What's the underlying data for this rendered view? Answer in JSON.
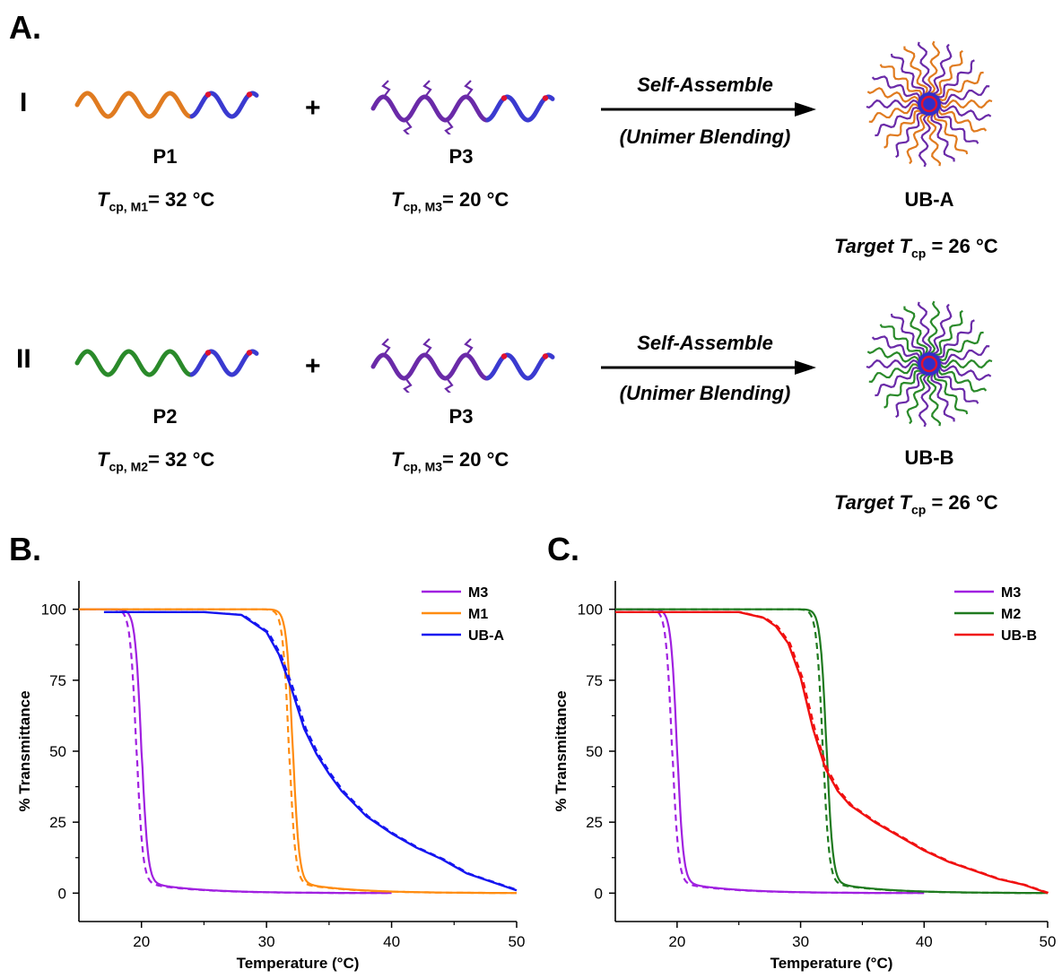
{
  "panel_labels": {
    "A": "A.",
    "B": "B.",
    "C": "C."
  },
  "schemes": [
    {
      "roman": "I",
      "left": {
        "name": "P1",
        "tcp_pre": "T",
        "tcp_sub": "cp, M1",
        "tcp_post": "= 32 °C",
        "color": "#e07b20"
      },
      "right": {
        "name": "P3",
        "tcp_pre": "T",
        "tcp_sub": "cp, M3",
        "tcp_post": "= 20 °C",
        "color": "#6a2aa8"
      },
      "plus": "+",
      "arrow_top": "Self-Assemble",
      "arrow_bottom": "(Unimer Blending)",
      "product": {
        "name": "UB-A",
        "target_pre": "Target ",
        "target_t": "T",
        "target_sub": "cp",
        "target_post": " = 26 °C",
        "arm_color": "#e07b20"
      }
    },
    {
      "roman": "II",
      "left": {
        "name": "P2",
        "tcp_pre": "T",
        "tcp_sub": "cp, M2",
        "tcp_post": "= 32 °C",
        "color": "#2a8a2a"
      },
      "right": {
        "name": "P3",
        "tcp_pre": "T",
        "tcp_sub": "cp, M3",
        "tcp_post": "= 20 °C",
        "color": "#6a2aa8"
      },
      "plus": "+",
      "arrow_top": "Self-Assemble",
      "arrow_bottom": "(Unimer Blending)",
      "product": {
        "name": "UB-B",
        "target_pre": "Target ",
        "target_t": "T",
        "target_sub": "cp",
        "target_post": " = 26 °C",
        "arm_color": "#2a8a2a"
      }
    }
  ],
  "chart_data": [
    {
      "type": "line",
      "panel": "B.",
      "xlabel": "Temperature (°C)",
      "ylabel": "% Transmittance",
      "xlim": [
        15,
        50
      ],
      "ylim": [
        -10,
        110
      ],
      "xticks": [
        20,
        30,
        40,
        50
      ],
      "yticks": [
        0,
        25,
        50,
        75,
        100
      ],
      "legend_position": "top-right",
      "series": [
        {
          "name": "M3",
          "color": "#a020e0",
          "shape": "sigmoid",
          "x_range": [
            15,
            40
          ],
          "midpoint_solid": 20.0,
          "midpoint_dashed": 19.6,
          "steepness": 4.0,
          "tail": 0.35
        },
        {
          "name": "M1",
          "color": "#ff8c10",
          "shape": "sigmoid",
          "x_range": [
            15,
            50
          ],
          "midpoint_solid": 32.1,
          "midpoint_dashed": 31.8,
          "steepness": 4.0,
          "tail": 0.35
        },
        {
          "name": "UB-A",
          "color": "#1515f0",
          "shape": "broad",
          "x_range": [
            17,
            50
          ],
          "points": [
            [
              17,
              99
            ],
            [
              25,
              99
            ],
            [
              28,
              98
            ],
            [
              30,
              92
            ],
            [
              31,
              84
            ],
            [
              32,
              72
            ],
            [
              33,
              58
            ],
            [
              34,
              49
            ],
            [
              35,
              42
            ],
            [
              36,
              36
            ],
            [
              38,
              27
            ],
            [
              40,
              21
            ],
            [
              42,
              16
            ],
            [
              44,
              12
            ],
            [
              46,
              7
            ],
            [
              48,
              4
            ],
            [
              50,
              1
            ]
          ]
        }
      ]
    },
    {
      "type": "line",
      "panel": "C.",
      "xlabel": "Temperature (°C)",
      "ylabel": "% Transmittance",
      "xlim": [
        15,
        50
      ],
      "ylim": [
        -10,
        110
      ],
      "xticks": [
        20,
        30,
        40,
        50
      ],
      "yticks": [
        0,
        25,
        50,
        75,
        100
      ],
      "legend_position": "top-right",
      "series": [
        {
          "name": "M3",
          "color": "#a020e0",
          "shape": "sigmoid",
          "x_range": [
            15,
            40
          ],
          "midpoint_solid": 20.0,
          "midpoint_dashed": 19.6,
          "steepness": 4.0,
          "tail": 0.35
        },
        {
          "name": "M2",
          "color": "#1f7a1f",
          "shape": "sigmoid",
          "x_range": [
            15,
            50
          ],
          "midpoint_solid": 32.1,
          "midpoint_dashed": 31.8,
          "steepness": 4.0,
          "tail": 0.35
        },
        {
          "name": "UB-B",
          "color": "#f01010",
          "shape": "broad",
          "x_range": [
            15,
            50
          ],
          "points": [
            [
              15,
              99
            ],
            [
              25,
              99
            ],
            [
              27,
              97
            ],
            [
              28,
              94
            ],
            [
              29,
              88
            ],
            [
              30,
              76
            ],
            [
              31,
              58
            ],
            [
              32,
              44
            ],
            [
              33,
              36
            ],
            [
              34,
              31
            ],
            [
              36,
              25
            ],
            [
              38,
              20
            ],
            [
              40,
              15
            ],
            [
              42,
              11
            ],
            [
              44,
              8
            ],
            [
              46,
              5
            ],
            [
              48,
              3
            ],
            [
              50,
              0
            ]
          ]
        }
      ]
    }
  ]
}
